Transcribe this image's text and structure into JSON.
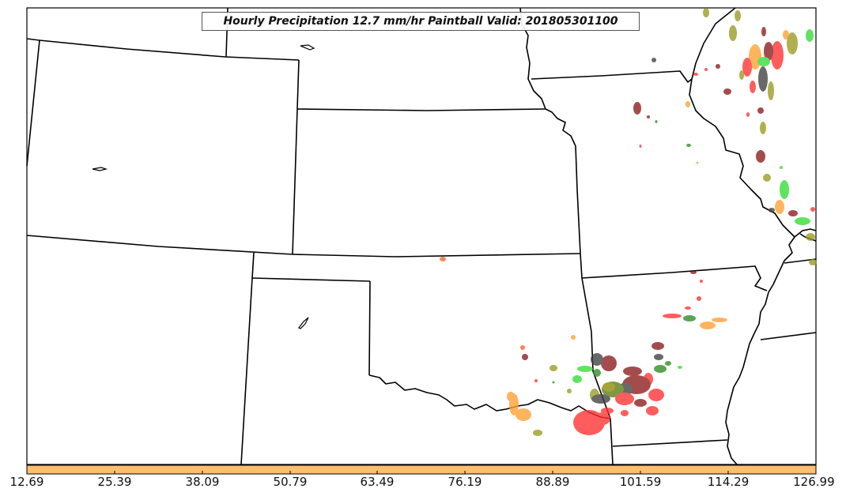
{
  "title": "Hourly Precipitation 12.7 mm/hr Paintball Valid: 201805301100",
  "colorbar": {
    "color": "#fdbf6f",
    "tick_labels": [
      "12.69",
      "25.39",
      "38.09",
      "50.79",
      "63.49",
      "76.19",
      "88.89",
      "101.59",
      "114.29",
      "126.99"
    ]
  },
  "colors": {
    "red": "#ff3030",
    "dark-red": "#8b1a1a",
    "green": "#33dd33",
    "dark-green": "#2e8b22",
    "orange": "#ffa030",
    "olive": "#9a9a20",
    "dark-gray": "#404040",
    "olive-green": "#5a7a10"
  }
}
